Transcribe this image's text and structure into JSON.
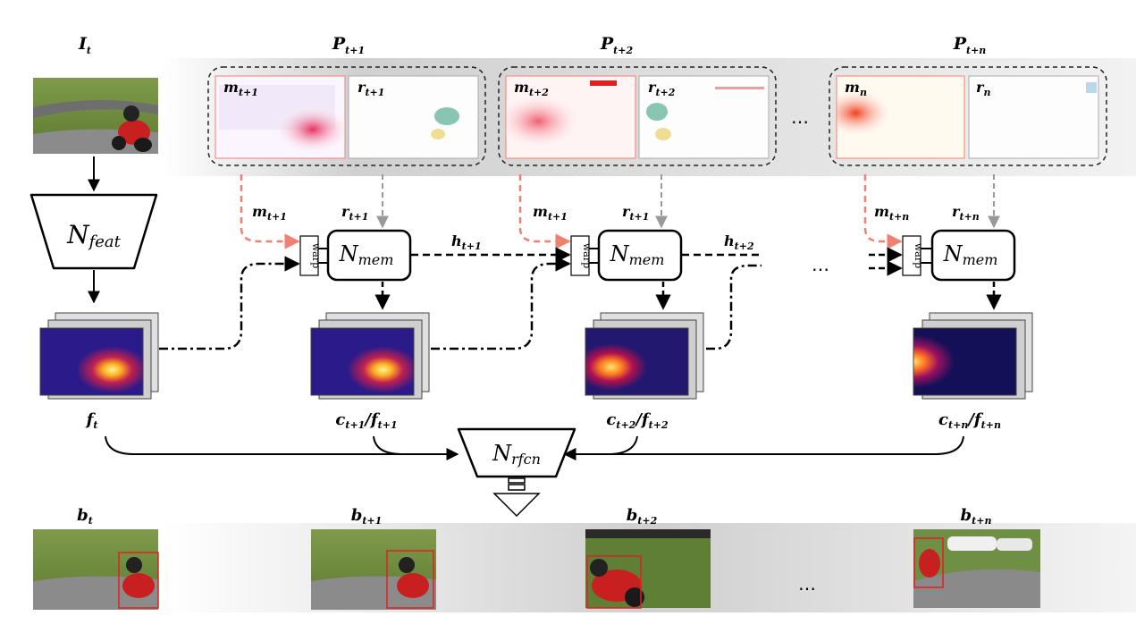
{
  "input": {
    "label": "I",
    "sub": "t"
  },
  "packets": [
    {
      "label": "P",
      "sub": "t+1",
      "mv_label": "m",
      "mv_sub": "t+1",
      "res_label": "r",
      "res_sub": "t+1"
    },
    {
      "label": "P",
      "sub": "t+2",
      "mv_label": "m",
      "mv_sub": "t+2",
      "res_label": "r",
      "res_sub": "t+2"
    },
    {
      "label": "P",
      "sub": "t+n",
      "mv_label": "m",
      "mv_sub": "n",
      "res_label": "r",
      "res_sub": "n"
    }
  ],
  "ellipsis": "…",
  "modules": {
    "feat": {
      "name": "N",
      "sub": "feat"
    },
    "mem": {
      "name": "N",
      "sub": "mem"
    },
    "rfcn": {
      "name": "N",
      "sub": "rfcn"
    },
    "warp": "warp"
  },
  "flow_labels": {
    "m1": {
      "label": "m",
      "sub": "t+1"
    },
    "r1": {
      "label": "r",
      "sub": "t+1"
    },
    "m2": {
      "label": "m",
      "sub": "t+1"
    },
    "r2": {
      "label": "r",
      "sub": "t+1"
    },
    "m3": {
      "label": "m",
      "sub": "t+n"
    },
    "r3": {
      "label": "r",
      "sub": "t+n"
    },
    "h1": {
      "label": "h",
      "sub": "t+1"
    },
    "h2": {
      "label": "h",
      "sub": "t+2"
    }
  },
  "features": [
    {
      "label": "f",
      "sub": "t"
    },
    {
      "label": "c",
      "sub": "t+1",
      "label2": "f",
      "sub2": "t+1"
    },
    {
      "label": "c",
      "sub": "t+2",
      "label2": "f",
      "sub2": "t+2"
    },
    {
      "label": "c",
      "sub": "t+n",
      "label2": "f",
      "sub2": "t+n"
    }
  ],
  "outputs": [
    {
      "label": "b",
      "sub": "t"
    },
    {
      "label": "b",
      "sub": "t+1"
    },
    {
      "label": "b",
      "sub": "t+2"
    },
    {
      "label": "b",
      "sub": "t+n"
    }
  ],
  "colors": {
    "mv_arrow": "#f08070",
    "res_arrow": "#999999",
    "band": "#d9d9d9",
    "bbox": "#e02020",
    "heat_dark": "#10106a",
    "heat_bright": "#ffe040"
  }
}
